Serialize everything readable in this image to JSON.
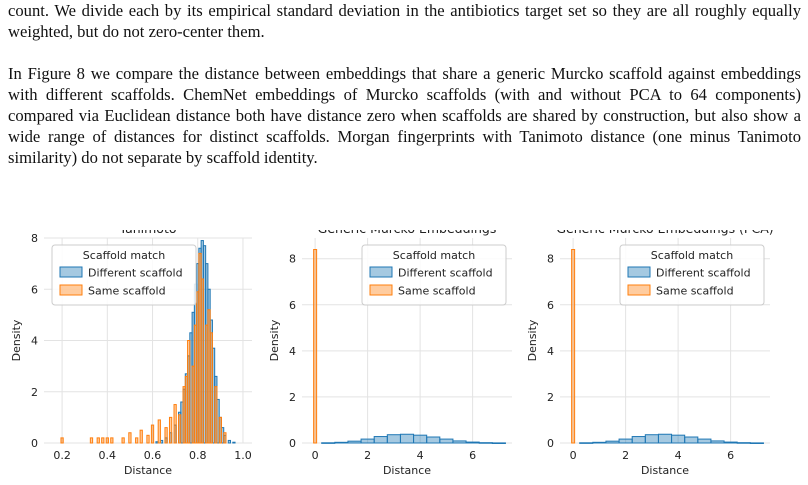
{
  "paragraphs": [
    "count. We divide each by its empirical standard deviation in the antibiotics target set so they are all roughly equally weighted, but do not zero-center them.",
    "In Figure 8 we compare the distance between embeddings that share a generic Murcko scaffold against embeddings with different scaffolds. ChemNet embeddings of Murcko scaffolds (with and without PCA to 64 components) compared via Euclidean distance both have distance zero when scaffolds are shared by construction, but also show a wide range of distances for distinct scaffolds. Morgan fingerprints with Tanimoto distance (one minus Tanimoto similarity) do not separate by scaffold identity."
  ],
  "colors": {
    "different": "#1f77b4",
    "same": "#ff7f0e",
    "grid": "#e3e3e3"
  },
  "chart_data": [
    {
      "type": "histogram",
      "title": "Tanimoto",
      "xlabel": "Distance",
      "ylabel": "Density",
      "xlim": [
        0.12,
        1.04
      ],
      "ylim": [
        0,
        8
      ],
      "xticks": [
        0.2,
        0.4,
        0.6,
        0.8,
        1.0
      ],
      "xtick_labels": [
        "0.2",
        "0.4",
        "0.6",
        "0.8",
        "1.0"
      ],
      "yticks": [
        0,
        2,
        4,
        6,
        8
      ],
      "legend": {
        "title": "Scaffold match",
        "position": "upper-left",
        "entries": [
          "Different scaffold",
          "Same scaffold"
        ]
      },
      "series": [
        {
          "name": "Different scaffold",
          "x": [
            0.62,
            0.64,
            0.66,
            0.68,
            0.7,
            0.72,
            0.73,
            0.74,
            0.75,
            0.76,
            0.77,
            0.78,
            0.79,
            0.8,
            0.81,
            0.82,
            0.83,
            0.84,
            0.85,
            0.86,
            0.87,
            0.88,
            0.89,
            0.9,
            0.91,
            0.92,
            0.94,
            0.96
          ],
          "y": [
            0.05,
            0.1,
            0.2,
            0.4,
            0.7,
            1.2,
            1.6,
            2.1,
            2.7,
            3.4,
            4.3,
            5.1,
            6.2,
            7.0,
            7.6,
            7.9,
            7.7,
            7.0,
            6.0,
            4.8,
            3.7,
            2.6,
            1.7,
            1.0,
            0.6,
            0.3,
            0.1,
            0.03
          ]
        },
        {
          "name": "Same scaffold",
          "x": [
            0.2,
            0.33,
            0.36,
            0.38,
            0.4,
            0.42,
            0.47,
            0.5,
            0.53,
            0.55,
            0.58,
            0.6,
            0.63,
            0.66,
            0.68,
            0.7,
            0.72,
            0.74,
            0.75,
            0.76,
            0.78,
            0.79,
            0.8,
            0.81,
            0.82,
            0.84,
            0.85,
            0.86,
            0.88,
            0.9,
            0.92
          ],
          "y": [
            0.2,
            0.2,
            0.2,
            0.2,
            0.2,
            0.2,
            0.2,
            0.4,
            0.2,
            0.5,
            0.3,
            0.7,
            0.9,
            0.6,
            1.0,
            1.5,
            1.1,
            2.2,
            2.6,
            4.0,
            3.0,
            4.6,
            5.9,
            7.4,
            6.4,
            4.6,
            5.2,
            4.3,
            2.2,
            1.0,
            0.4
          ]
        }
      ]
    },
    {
      "type": "histogram",
      "title": "Generic Murcko Embeddings",
      "xlabel": "Distance",
      "ylabel": "Density",
      "xlim": [
        -0.5,
        7.5
      ],
      "ylim": [
        0,
        8.9
      ],
      "xticks": [
        0,
        2,
        4,
        6
      ],
      "xtick_labels": [
        "0",
        "2",
        "4",
        "6"
      ],
      "yticks": [
        0,
        2,
        4,
        6,
        8
      ],
      "legend": {
        "title": "Scaffold match",
        "position": "upper-right",
        "entries": [
          "Different scaffold",
          "Same scaffold"
        ]
      },
      "series": [
        {
          "name": "Different scaffold",
          "x": [
            0.5,
            1.0,
            1.5,
            2.0,
            2.5,
            3.0,
            3.5,
            4.0,
            4.5,
            5.0,
            5.5,
            6.0,
            6.5,
            7.0
          ],
          "y": [
            0.01,
            0.03,
            0.08,
            0.17,
            0.28,
            0.36,
            0.38,
            0.34,
            0.26,
            0.17,
            0.09,
            0.04,
            0.015,
            0.005
          ]
        },
        {
          "name": "Same scaffold",
          "x": [
            0.0
          ],
          "y": [
            8.4
          ]
        }
      ]
    },
    {
      "type": "histogram",
      "title": "Generic Murcko Embeddings (PCA)",
      "xlabel": "Distance",
      "ylabel": "Density",
      "xlim": [
        -0.5,
        7.5
      ],
      "ylim": [
        0,
        8.9
      ],
      "xticks": [
        0,
        2,
        4,
        6
      ],
      "xtick_labels": [
        "0",
        "2",
        "4",
        "6"
      ],
      "yticks": [
        0,
        2,
        4,
        6,
        8
      ],
      "legend": {
        "title": "Scaffold match",
        "position": "upper-right",
        "entries": [
          "Different scaffold",
          "Same scaffold"
        ]
      },
      "series": [
        {
          "name": "Different scaffold",
          "x": [
            0.5,
            1.0,
            1.5,
            2.0,
            2.5,
            3.0,
            3.5,
            4.0,
            4.5,
            5.0,
            5.5,
            6.0,
            6.5,
            7.0
          ],
          "y": [
            0.01,
            0.03,
            0.08,
            0.17,
            0.28,
            0.36,
            0.38,
            0.34,
            0.26,
            0.17,
            0.09,
            0.04,
            0.015,
            0.005
          ]
        },
        {
          "name": "Same scaffold",
          "x": [
            0.0
          ],
          "y": [
            8.4
          ]
        }
      ]
    }
  ]
}
